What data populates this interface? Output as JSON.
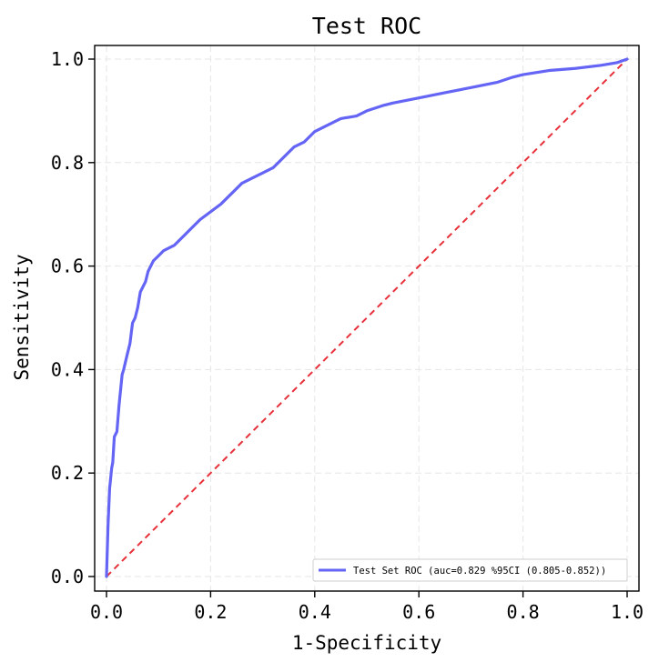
{
  "chart_data": {
    "type": "line",
    "title": "Test ROC",
    "xlabel": "1-Specificity",
    "ylabel": "Sensitivity",
    "xlim": [
      0,
      1
    ],
    "ylim": [
      0,
      1
    ],
    "xticks": [
      "0.0",
      "0.2",
      "0.4",
      "0.6",
      "0.8",
      "1.0"
    ],
    "yticks": [
      "0.0",
      "0.2",
      "0.4",
      "0.6",
      "0.8",
      "1.0"
    ],
    "grid": true,
    "legend_position": "lower-right",
    "series": [
      {
        "name": "Test Set ROC (auc=0.829 %95CI (0.805-0.852))",
        "color": "#6464f5",
        "x": [
          0.0,
          0.003,
          0.006,
          0.01,
          0.012,
          0.015,
          0.02,
          0.024,
          0.03,
          0.033,
          0.04,
          0.045,
          0.05,
          0.055,
          0.06,
          0.065,
          0.07,
          0.075,
          0.08,
          0.085,
          0.09,
          0.1,
          0.11,
          0.12,
          0.13,
          0.15,
          0.16,
          0.18,
          0.2,
          0.22,
          0.24,
          0.26,
          0.28,
          0.3,
          0.32,
          0.34,
          0.36,
          0.38,
          0.4,
          0.42,
          0.45,
          0.48,
          0.5,
          0.53,
          0.55,
          0.6,
          0.65,
          0.7,
          0.75,
          0.78,
          0.8,
          0.85,
          0.9,
          0.95,
          0.98,
          1.0
        ],
        "y": [
          0.0,
          0.1,
          0.17,
          0.21,
          0.22,
          0.27,
          0.28,
          0.33,
          0.39,
          0.4,
          0.43,
          0.45,
          0.49,
          0.5,
          0.52,
          0.55,
          0.56,
          0.57,
          0.59,
          0.6,
          0.61,
          0.62,
          0.63,
          0.635,
          0.64,
          0.66,
          0.67,
          0.69,
          0.705,
          0.72,
          0.74,
          0.76,
          0.77,
          0.78,
          0.79,
          0.81,
          0.83,
          0.84,
          0.86,
          0.87,
          0.885,
          0.89,
          0.9,
          0.91,
          0.915,
          0.925,
          0.935,
          0.945,
          0.955,
          0.965,
          0.97,
          0.978,
          0.982,
          0.988,
          0.993,
          1.0
        ]
      },
      {
        "name": "",
        "color": "#e8303a",
        "x": [
          0,
          1
        ],
        "y": [
          0,
          1
        ]
      }
    ]
  }
}
